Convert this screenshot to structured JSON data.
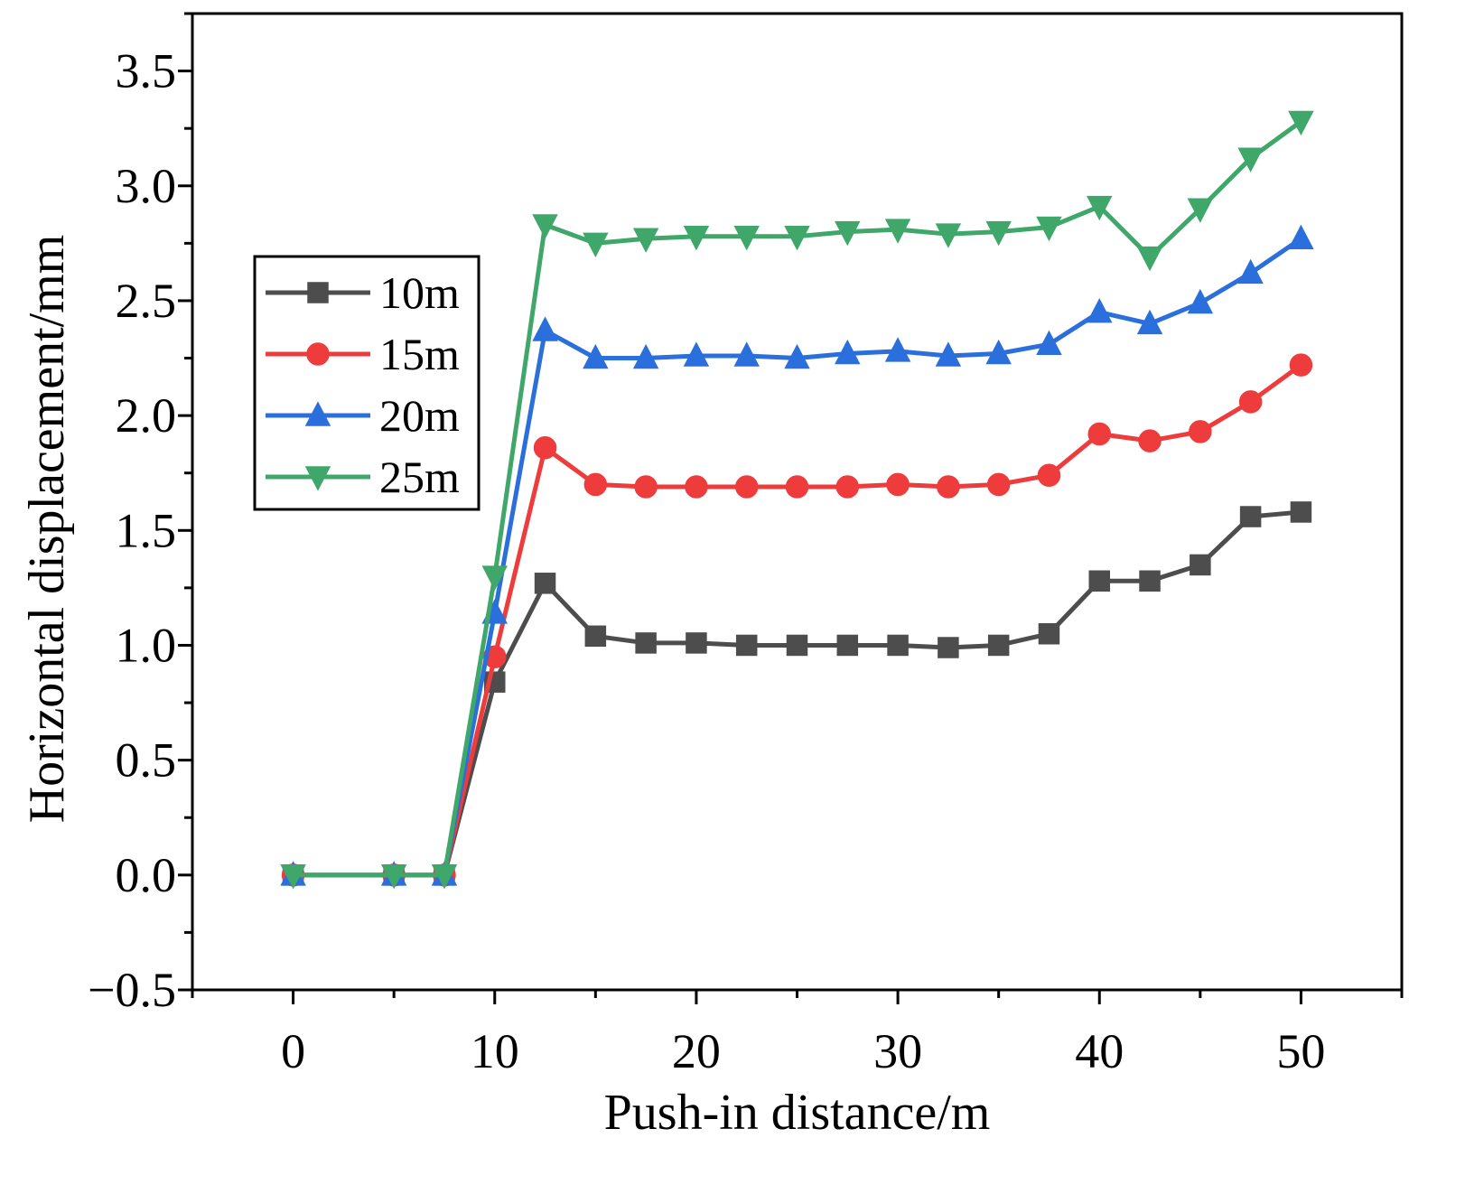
{
  "chart_data": {
    "type": "line",
    "title": "",
    "xlabel": "Push-in distance/m",
    "ylabel": "Horizontal displacement/mm",
    "xlim": [
      -5,
      55
    ],
    "ylim": [
      -0.5,
      3.75
    ],
    "xticks": [
      0,
      10,
      20,
      30,
      40,
      50
    ],
    "xtick_labels": [
      "0",
      "10",
      "20",
      "30",
      "40",
      "50"
    ],
    "yticks": [
      -0.5,
      0.0,
      0.5,
      1.0,
      1.5,
      2.0,
      2.5,
      3.0,
      3.5
    ],
    "ytick_labels": [
      "−0.5",
      "0.0",
      "0.5",
      "1.0",
      "1.5",
      "2.0",
      "2.5",
      "3.0",
      "3.5"
    ],
    "grid": false,
    "legend_position": "center-left",
    "x": [
      0,
      5,
      7.5,
      10,
      12.5,
      15,
      17.5,
      20,
      22.5,
      25,
      27.5,
      30,
      32.5,
      35,
      37.5,
      40,
      42.5,
      45,
      47.5,
      50
    ],
    "series": [
      {
        "name": "10m",
        "color": "#4d4d4d",
        "marker": "square",
        "values": [
          0,
          0,
          0,
          0.84,
          1.27,
          1.04,
          1.01,
          1.01,
          1.0,
          1.0,
          1.0,
          1.0,
          0.99,
          1.0,
          1.05,
          1.28,
          1.28,
          1.35,
          1.56,
          1.58
        ]
      },
      {
        "name": "15m",
        "color": "#ee3b3b",
        "marker": "circle",
        "values": [
          0,
          0,
          0,
          0.95,
          1.86,
          1.7,
          1.69,
          1.69,
          1.69,
          1.69,
          1.69,
          1.7,
          1.69,
          1.7,
          1.74,
          1.92,
          1.89,
          1.93,
          2.06,
          2.22
        ]
      },
      {
        "name": "20m",
        "color": "#2a6fdb",
        "marker": "triangle-up",
        "values": [
          0,
          0,
          0,
          1.14,
          2.37,
          2.25,
          2.25,
          2.26,
          2.26,
          2.25,
          2.27,
          2.28,
          2.26,
          2.27,
          2.31,
          2.45,
          2.4,
          2.49,
          2.62,
          2.77
        ]
      },
      {
        "name": "25m",
        "color": "#3fa76a",
        "marker": "triangle-down",
        "values": [
          0,
          0,
          0,
          1.3,
          2.83,
          2.75,
          2.77,
          2.78,
          2.78,
          2.78,
          2.8,
          2.81,
          2.79,
          2.8,
          2.82,
          2.91,
          2.69,
          2.9,
          3.12,
          3.28
        ]
      }
    ]
  }
}
